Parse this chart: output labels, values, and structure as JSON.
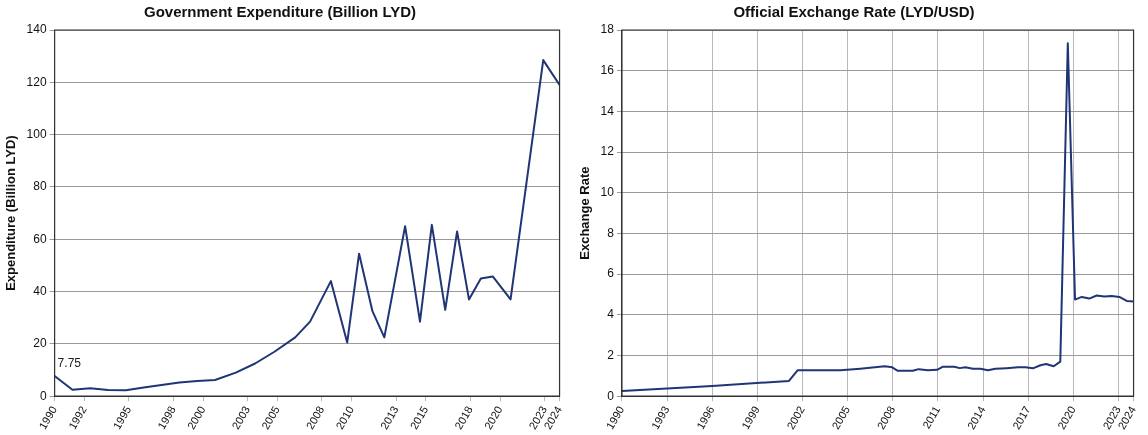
{
  "chart_data": [
    {
      "type": "line",
      "title": "Government Expenditure (Billion LYD)",
      "ylabel": "Expenditure (Billion LYD)",
      "x": [
        1990,
        1991.2,
        1992.4,
        1993.6,
        1994.8,
        1996,
        1997.2,
        1998.4,
        1999.6,
        2000.8,
        2002.2,
        2003.5,
        2004.8,
        2006.2,
        2007.2,
        2008.6,
        2009.7,
        2010.5,
        2011.4,
        2012.2,
        2013.6,
        2014.6,
        2015.4,
        2016.3,
        2017.1,
        2017.9,
        2018.7,
        2019.5,
        2020.7,
        2022.9,
        2024
      ],
      "series": [
        {
          "color": "#1f3575",
          "values": [
            7.75,
            2.5,
            3,
            2.4,
            2.3,
            3.3,
            4.3,
            5.2,
            5.8,
            6.2,
            9,
            12.5,
            17,
            22.5,
            28.5,
            44,
            20.5,
            54.5,
            32.5,
            22.5,
            65,
            28.5,
            65.5,
            33,
            63,
            37,
            45,
            45.8,
            37,
            128.5,
            119
          ],
          "value_labels": [
            "7.75",
            null,
            null,
            null,
            null,
            null,
            null,
            null,
            null,
            null,
            null,
            null,
            null,
            null,
            null,
            null,
            null,
            null,
            null,
            null,
            null,
            null,
            null,
            null,
            null,
            null,
            null,
            null,
            null,
            null,
            null
          ]
        }
      ],
      "xlim": [
        1990,
        2024
      ],
      "xticks": [
        1990,
        1992,
        1995,
        1998,
        2000,
        2003,
        2005,
        2008,
        2010,
        2013,
        2015,
        2018,
        2020,
        2023,
        2024
      ],
      "ylim": [
        0,
        140
      ],
      "yticks": [
        0,
        20,
        40,
        60,
        80,
        100,
        120,
        140
      ],
      "grid": "y",
      "marker": "none",
      "legend": false
    },
    {
      "type": "line",
      "title": "Official Exchange Rate (LYD/USD)",
      "ylabel": "Exchange Rate",
      "x": [
        1990,
        1996,
        2001.1,
        2001.67,
        2004.52,
        2005.84,
        2007.46,
        2007.96,
        2008.33,
        2009.33,
        2009.71,
        2010.33,
        2010.95,
        2011.33,
        2012.08,
        2012.45,
        2012.82,
        2013.32,
        2013.82,
        2014.32,
        2014.82,
        2015.57,
        2016.32,
        2016.81,
        2017.31,
        2017.81,
        2018.19,
        2018.69,
        2019.13,
        2019.63,
        2020.11,
        2020.56,
        2021.06,
        2021.55,
        2022.05,
        2022.55,
        2023.05,
        2023.55,
        2024
      ],
      "series": [
        {
          "color": "#1f3575",
          "values": [
            0.25,
            0.5,
            0.75,
            1.27,
            1.27,
            1.35,
            1.47,
            1.42,
            1.25,
            1.25,
            1.33,
            1.28,
            1.3,
            1.45,
            1.45,
            1.38,
            1.42,
            1.35,
            1.35,
            1.28,
            1.35,
            1.38,
            1.42,
            1.42,
            1.37,
            1.52,
            1.58,
            1.47,
            1.7,
            17.35,
            4.75,
            4.88,
            4.8,
            4.95,
            4.9,
            4.93,
            4.88,
            4.68,
            4.65
          ]
        }
      ],
      "xlim": [
        1990,
        2024
      ],
      "xticks": [
        1990,
        1993,
        1996,
        1999,
        2002,
        2005,
        2008,
        2011,
        2014,
        2017,
        2020,
        2023,
        2024
      ],
      "ylim": [
        0,
        18
      ],
      "yticks": [
        0,
        2,
        4,
        6,
        8,
        10,
        12,
        14,
        16,
        18
      ],
      "grid": true,
      "marker": "none",
      "legend": false
    }
  ]
}
